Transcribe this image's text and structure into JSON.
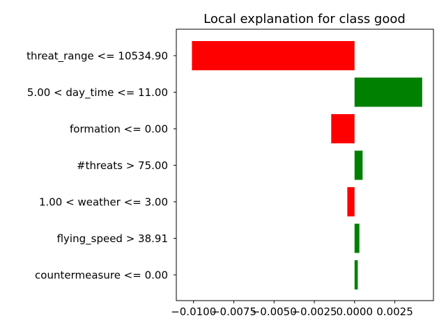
{
  "chart_data": {
    "type": "bar",
    "orientation": "horizontal",
    "title": "Local explanation for class good",
    "xlabel": "",
    "ylabel": "",
    "categories": [
      "threat_range <= 10534.90",
      "5.00 < day_time <= 11.00",
      "formation <= 0.00",
      "#threats > 75.00",
      "1.00 < weather <= 3.00",
      "flying_speed > 38.91",
      "countermeasure <= 0.00"
    ],
    "values": [
      -0.0101,
      0.0042,
      -0.00145,
      0.0005,
      -0.00045,
      0.0003,
      0.0002
    ],
    "xlim": [
      -0.01107,
      0.0049
    ],
    "xticks": [
      -0.01,
      -0.0075,
      -0.005,
      -0.0025,
      0.0,
      0.0025
    ],
    "xtick_labels": [
      "−0.0100",
      "−0.0075",
      "−0.0050",
      "−0.0025",
      "0.0000",
      "0.0025"
    ],
    "colors": {
      "positive": "#008000",
      "negative": "#ff0000"
    },
    "grid": false,
    "legend": "none"
  }
}
